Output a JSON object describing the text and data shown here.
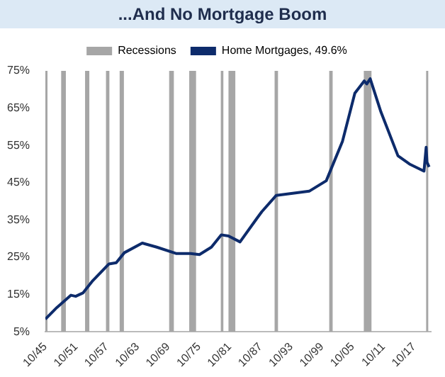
{
  "chart_data": {
    "type": "line",
    "title": "...And No Mortgage Boom",
    "series": [
      {
        "name": "Home Mortgages, 49.6%",
        "color": "#0d2b6b",
        "x": [
          "1945-10",
          "1948-01",
          "1950-10",
          "1951-09",
          "1953-02",
          "1955-01",
          "1958-03",
          "1959-08",
          "1961-03",
          "1964-09",
          "1967-07",
          "1971-04",
          "1974-02",
          "1975-11",
          "1978-03",
          "1980-02",
          "1981-07",
          "1983-10",
          "1987-02",
          "1988-01",
          "1990-11",
          "1997-04",
          "2000-08",
          "2003-10",
          "2006-03",
          "2008-01",
          "2008-07",
          "2009-03",
          "2011-04",
          "2014-08",
          "2016-11",
          "2019-09",
          "2020-02",
          "2020-04",
          "2020-09"
        ],
        "values": [
          8.4,
          11.5,
          14.8,
          14.5,
          15.4,
          18.7,
          23.2,
          23.5,
          26.2,
          28.8,
          27.7,
          26.0,
          26.0,
          25.7,
          27.7,
          31.0,
          30.7,
          29.1,
          35.5,
          37.2,
          41.6,
          42.7,
          45.5,
          56.1,
          69,
          72.3,
          71.5,
          72.9,
          64,
          52.2,
          50,
          48.1,
          54.5,
          50.5,
          49.2
        ]
      }
    ],
    "bands": [
      {
        "axis": "x",
        "from": "1945-10",
        "to": "1945-12",
        "label": "Recessions",
        "color": "#a6a6a6"
      },
      {
        "axis": "x",
        "from": "1948-11",
        "to": "1949-10",
        "color": "#a6a6a6"
      },
      {
        "axis": "x",
        "from": "1953-07",
        "to": "1954-05",
        "color": "#a6a6a6"
      },
      {
        "axis": "x",
        "from": "1957-08",
        "to": "1958-04",
        "color": "#a6a6a6"
      },
      {
        "axis": "x",
        "from": "1960-04",
        "to": "1961-02",
        "color": "#a6a6a6"
      },
      {
        "axis": "x",
        "from": "1969-12",
        "to": "1970-11",
        "color": "#a6a6a6"
      },
      {
        "axis": "x",
        "from": "1973-11",
        "to": "1975-03",
        "color": "#a6a6a6"
      },
      {
        "axis": "x",
        "from": "1980-01",
        "to": "1980-07",
        "color": "#a6a6a6"
      },
      {
        "axis": "x",
        "from": "1981-07",
        "to": "1982-11",
        "color": "#a6a6a6"
      },
      {
        "axis": "x",
        "from": "1990-07",
        "to": "1991-03",
        "color": "#a6a6a6"
      },
      {
        "axis": "x",
        "from": "2001-03",
        "to": "2001-11",
        "color": "#a6a6a6"
      },
      {
        "axis": "x",
        "from": "2007-12",
        "to": "2009-06",
        "color": "#a6a6a6"
      },
      {
        "axis": "x",
        "from": "2020-02",
        "to": "2020-04",
        "color": "#a6a6a6"
      }
    ],
    "xlim": [
      "1945-10",
      "2021-01"
    ],
    "xticks": [
      {
        "value": "1945-10",
        "label": "10/45"
      },
      {
        "value": "1951-10",
        "label": "10/51"
      },
      {
        "value": "1957-10",
        "label": "10/57"
      },
      {
        "value": "1963-10",
        "label": "10/63"
      },
      {
        "value": "1969-10",
        "label": "10/69"
      },
      {
        "value": "1975-10",
        "label": "10/75"
      },
      {
        "value": "1981-10",
        "label": "10/81"
      },
      {
        "value": "1987-10",
        "label": "10/87"
      },
      {
        "value": "1993-10",
        "label": "10/93"
      },
      {
        "value": "1999-10",
        "label": "10/99"
      },
      {
        "value": "2005-10",
        "label": "10/05"
      },
      {
        "value": "2011-10",
        "label": "10/11"
      },
      {
        "value": "2017-10",
        "label": "10/17"
      }
    ],
    "ylim": [
      5,
      75
    ],
    "yticks": [
      {
        "value": 5,
        "label": "5%"
      },
      {
        "value": 15,
        "label": "15%"
      },
      {
        "value": 25,
        "label": "25%"
      },
      {
        "value": 35,
        "label": "35%"
      },
      {
        "value": 45,
        "label": "45%"
      },
      {
        "value": 55,
        "label": "55%"
      },
      {
        "value": 65,
        "label": "65%"
      },
      {
        "value": 75,
        "label": "75%"
      }
    ],
    "grid": false,
    "legend": "top",
    "marker": "none",
    "line_style": "solid"
  }
}
